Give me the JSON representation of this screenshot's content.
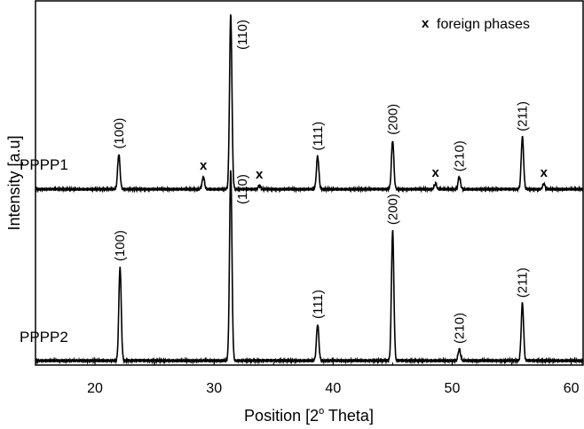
{
  "chart_data": {
    "type": "line",
    "xlabel_main": "Position [2",
    "xlabel_sup": "o",
    "xlabel_end": " Theta]",
    "ylabel": "Intensity [a.u]",
    "xlim": [
      15,
      61
    ],
    "xticks": [
      "20",
      "30",
      "40",
      "50",
      "60"
    ],
    "xtick_values": [
      20,
      30,
      40,
      50,
      60
    ],
    "legend": {
      "marker": "x",
      "label": "foreign phases",
      "placement": "top-right"
    },
    "series": [
      {
        "name": "PPPP1",
        "peaks": [
          {
            "x": 22.0,
            "h": 0.2,
            "label": "(100)"
          },
          {
            "x": 29.1,
            "h": 0.07,
            "foreign": true
          },
          {
            "x": 31.4,
            "h": 1.0,
            "label": "(110)"
          },
          {
            "x": 33.8,
            "h": 0.02,
            "foreign": true
          },
          {
            "x": 38.7,
            "h": 0.19,
            "label": "(111)"
          },
          {
            "x": 45.0,
            "h": 0.28,
            "label": "(200)"
          },
          {
            "x": 48.6,
            "h": 0.03,
            "foreign": true
          },
          {
            "x": 50.6,
            "h": 0.07,
            "label": "(210)"
          },
          {
            "x": 55.9,
            "h": 0.3,
            "label": "(211)"
          },
          {
            "x": 57.7,
            "h": 0.03,
            "foreign": true
          }
        ]
      },
      {
        "name": "PPPP2",
        "peaks": [
          {
            "x": 22.1,
            "h": 0.49,
            "label": "(100)"
          },
          {
            "x": 31.4,
            "h": 1.0,
            "label": "(110)"
          },
          {
            "x": 38.7,
            "h": 0.19,
            "label": "(111)"
          },
          {
            "x": 45.0,
            "h": 0.68,
            "label": "(200)"
          },
          {
            "x": 50.6,
            "h": 0.06,
            "label": "(210)"
          },
          {
            "x": 55.9,
            "h": 0.3,
            "label": "(211)"
          }
        ]
      }
    ]
  }
}
